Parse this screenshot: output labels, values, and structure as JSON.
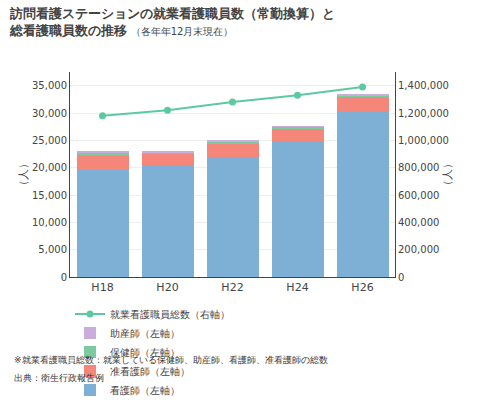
{
  "chart_data": {
    "type": "bar",
    "title": "訪問看護ステーションの就業看護職員数（常勤換算）と\n総看護職員数の推移",
    "subtitle": "（各年年12月末現在）",
    "ylabel": "（人）",
    "y2label": "（人）",
    "categories": [
      "H18",
      "H20",
      "H22",
      "H24",
      "H26"
    ],
    "stacked": true,
    "series": [
      {
        "name": "看護師（左軸）",
        "type": "bar",
        "color": "#7EB0D5",
        "values": [
          19500,
          20500,
          22000,
          24800,
          30200
        ]
      },
      {
        "name": "准看護師（左軸）",
        "type": "bar",
        "color": "#F4877A",
        "values": [
          2900,
          2000,
          2500,
          2400,
          2800
        ]
      },
      {
        "name": "保健師（左軸）",
        "type": "bar",
        "color": "#7DC9A0",
        "values": [
          450,
          350,
          320,
          280,
          280
        ]
      },
      {
        "name": "助産師（左軸）",
        "type": "bar",
        "color": "#C9AEDD",
        "values": [
          100,
          100,
          100,
          100,
          100
        ]
      },
      {
        "name": "就業看護職員総数（右軸）",
        "type": "line",
        "axis": "y2",
        "color": "#5DC9A0",
        "marker": "circle",
        "line_style": "solid",
        "values": [
          1180000,
          1220000,
          1280000,
          1330000,
          1390000
        ]
      }
    ],
    "ylim": [
      0,
      37500
    ],
    "yticks": [
      0,
      {
        "value": 5000,
        "label": "5,000"
      },
      {
        "value": 10000,
        "label": "10,000"
      },
      {
        "value": 15000,
        "label": "15,000"
      },
      {
        "value": 20000,
        "label": "20,000"
      },
      {
        "value": 25000,
        "label": "25,000"
      },
      {
        "value": 30000,
        "label": "30,000"
      },
      {
        "value": 35000,
        "label": "35,000"
      }
    ],
    "y2lim": [
      0,
      1500000
    ],
    "y2ticks": [
      0,
      {
        "value": 200000,
        "label": "200,000"
      },
      {
        "value": 400000,
        "label": "400,000"
      },
      {
        "value": 600000,
        "label": "600,000"
      },
      {
        "value": 800000,
        "label": "800,000"
      },
      {
        "value": 1000000,
        "label": "1,000,000"
      },
      {
        "value": 1200000,
        "label": "1,200,000"
      },
      {
        "value": 1400000,
        "label": "1,400,000"
      }
    ],
    "grid": true,
    "legend": "bottom",
    "annotations": [
      "※就業看護職員総数：就業している保健師、助産師、看護師、准看護師の総数",
      "出典：衛生行政報告例"
    ]
  }
}
